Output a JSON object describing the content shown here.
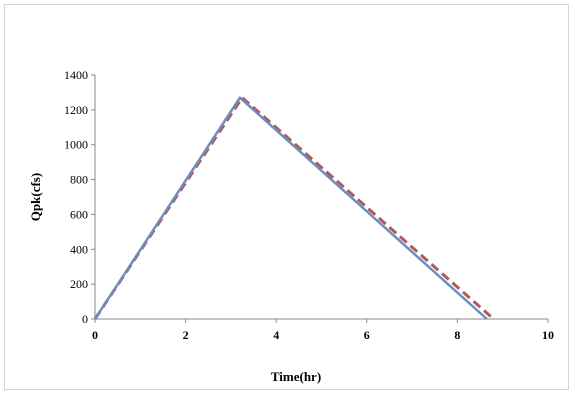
{
  "chart_data": {
    "type": "line",
    "title": "",
    "xlabel": "Time(hr)",
    "ylabel": "Qpk(cfs)",
    "xlim": [
      0,
      10
    ],
    "ylim": [
      0,
      1400
    ],
    "xticks": [
      0,
      2,
      4,
      6,
      8,
      10
    ],
    "yticks": [
      0,
      200,
      400,
      600,
      800,
      1000,
      1200,
      1400
    ],
    "grid": false,
    "legend": "none",
    "series": [
      {
        "style": "solid",
        "color": "#6c8ebf",
        "x": [
          0,
          3.2,
          8.65
        ],
        "y": [
          0,
          1270,
          0
        ]
      },
      {
        "style": "dashed",
        "color": "#b05a5a",
        "x": [
          0,
          3.25,
          8.8
        ],
        "y": [
          0,
          1270,
          0
        ]
      }
    ]
  }
}
